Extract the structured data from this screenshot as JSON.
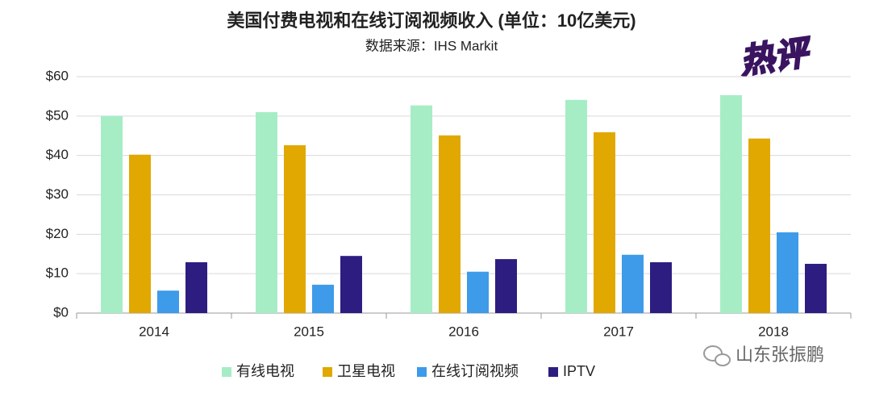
{
  "chart_data": {
    "type": "bar",
    "title": "美国付费电视和在线订阅视频收入 (单位：10亿美元)",
    "subtitle": "数据来源：IHS Markit",
    "badge": "热评",
    "watermark": "山东张振鹏",
    "categories": [
      "2014",
      "2015",
      "2016",
      "2017",
      "2018"
    ],
    "series": [
      {
        "name": "有线电视",
        "color": "#a6edc6",
        "values": [
          50,
          51,
          52.7,
          54.1,
          55.3
        ]
      },
      {
        "name": "卫星电视",
        "color": "#e0a800",
        "values": [
          40.2,
          42.6,
          45.1,
          45.9,
          44.3
        ]
      },
      {
        "name": "在线订阅视频",
        "color": "#3d9be9",
        "values": [
          5.7,
          7.2,
          10.5,
          14.8,
          20.5
        ]
      },
      {
        "name": "IPTV",
        "color": "#2e1d80",
        "values": [
          12.9,
          14.5,
          13.7,
          12.9,
          12.5
        ]
      }
    ],
    "ylim": [
      0,
      60
    ],
    "yticks": [
      {
        "value": 0,
        "label": "$0"
      },
      {
        "value": 10,
        "label": "$10"
      },
      {
        "value": 20,
        "label": "$20"
      },
      {
        "value": 30,
        "label": "$30"
      },
      {
        "value": 40,
        "label": "$40"
      },
      {
        "value": 50,
        "label": "$50"
      },
      {
        "value": 60,
        "label": "$60"
      }
    ],
    "grid": true,
    "legend": "bottom"
  }
}
